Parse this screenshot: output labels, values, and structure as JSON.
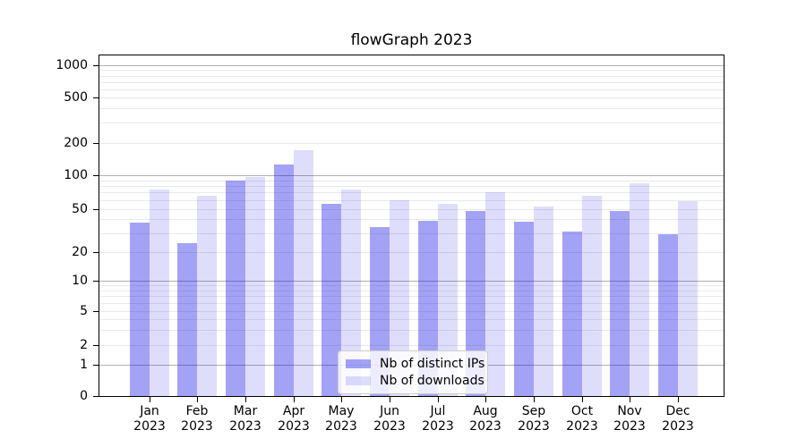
{
  "figure": {
    "title": "flowGraph 2023"
  },
  "chart_data": {
    "type": "bar",
    "title": "flowGraph 2023",
    "y_scale": "symlog",
    "ylim": [
      0,
      1300
    ],
    "grid": "horizontal major+minor",
    "legend_position": "lower center",
    "year_label": "2023",
    "categories": [
      "Jan",
      "Feb",
      "Mar",
      "Apr",
      "May",
      "Jun",
      "Jul",
      "Aug",
      "Sep",
      "Oct",
      "Nov",
      "Dec"
    ],
    "y_ticks": [
      0,
      1,
      2,
      5,
      10,
      20,
      50,
      100,
      200,
      500,
      1000
    ],
    "series": [
      {
        "name": "Nb of distinct IPs",
        "color": "rgba(0,0,230,0.36)",
        "values": [
          37,
          24,
          89,
          125,
          55,
          34,
          39,
          48,
          38,
          31,
          48,
          29
        ]
      },
      {
        "name": "Nb of downloads",
        "color": "rgba(0,0,230,0.13)",
        "values": [
          75,
          66,
          97,
          172,
          74,
          60,
          55,
          71,
          52,
          66,
          84,
          59
        ]
      }
    ],
    "colors": {
      "major_grid": "#b0b0b0",
      "minor_grid": "#e9e9e9",
      "axis": "#000000",
      "legend_border": "#cccccc"
    }
  }
}
